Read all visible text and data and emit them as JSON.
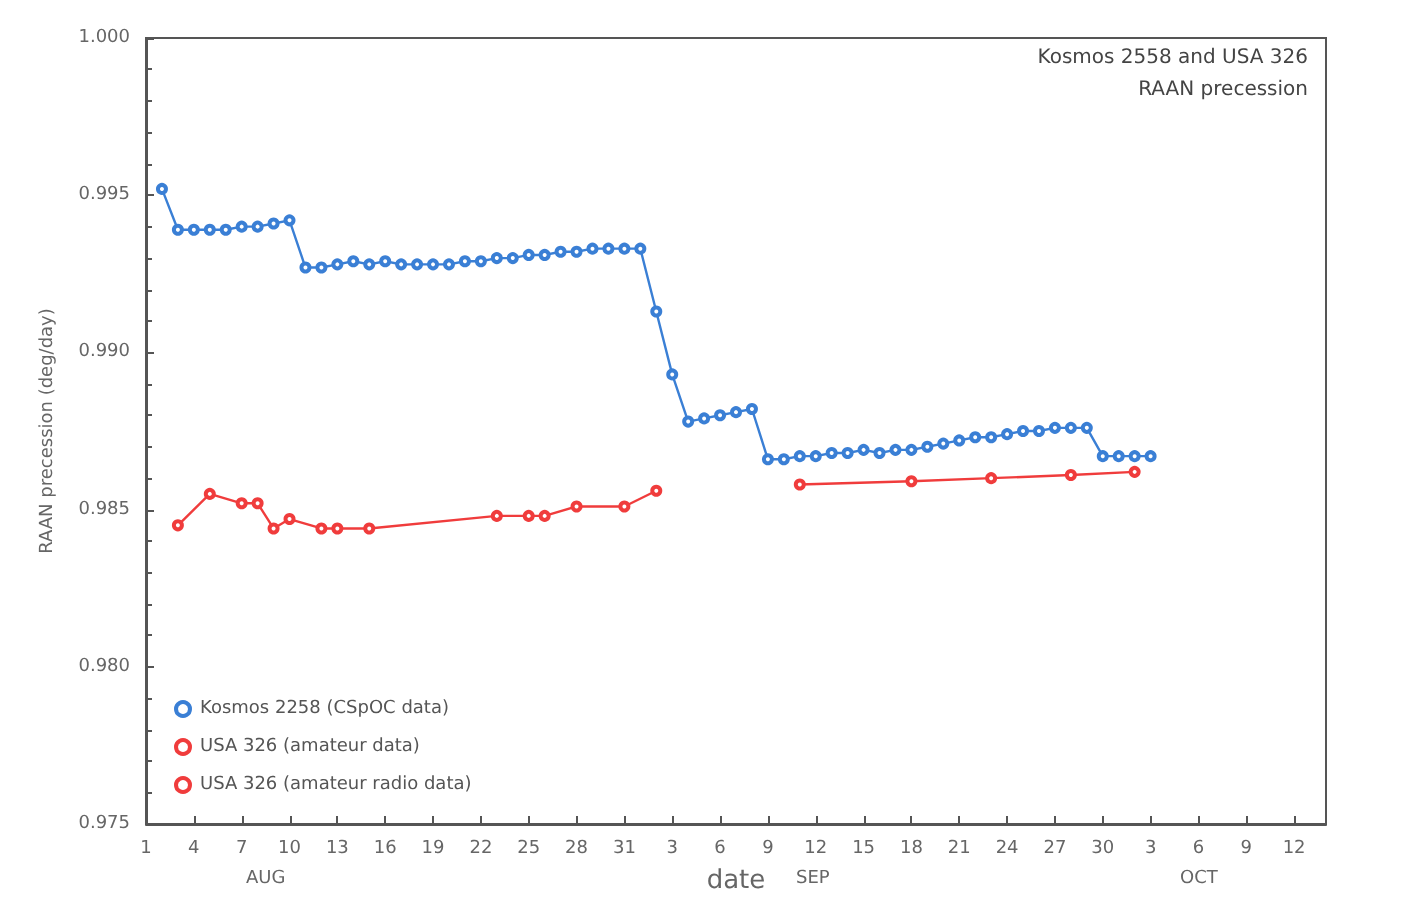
{
  "chart_data": {
    "type": "line",
    "title": "Kosmos 2558 and USA 326",
    "subtitle": "RAAN precession",
    "xlabel": "date",
    "ylabel": "RAAN precession (deg/day)",
    "annotations": [
      "AUG",
      "SEP",
      "OCT"
    ],
    "xlim": [
      "--08-01",
      "--10-14"
    ],
    "xticks": [
      {
        "value": "--08-01",
        "label": "1"
      },
      {
        "value": "--08-04",
        "label": "4"
      },
      {
        "value": "--08-07",
        "label": "7"
      },
      {
        "value": "--08-10",
        "label": "10"
      },
      {
        "value": "--08-13",
        "label": "13"
      },
      {
        "value": "--08-16",
        "label": "16"
      },
      {
        "value": "--08-19",
        "label": "19"
      },
      {
        "value": "--08-22",
        "label": "22"
      },
      {
        "value": "--08-25",
        "label": "25"
      },
      {
        "value": "--08-28",
        "label": "28"
      },
      {
        "value": "--08-31",
        "label": "31"
      },
      {
        "value": "--09-03",
        "label": "3"
      },
      {
        "value": "--09-06",
        "label": "6"
      },
      {
        "value": "--09-09",
        "label": "9"
      },
      {
        "value": "--09-12",
        "label": "12"
      },
      {
        "value": "--09-15",
        "label": "15"
      },
      {
        "value": "--09-18",
        "label": "18"
      },
      {
        "value": "--09-21",
        "label": "21"
      },
      {
        "value": "--09-24",
        "label": "24"
      },
      {
        "value": "--09-27",
        "label": "27"
      },
      {
        "value": "--09-30",
        "label": "30"
      },
      {
        "value": "--10-03",
        "label": "3"
      },
      {
        "value": "--10-06",
        "label": "6"
      },
      {
        "value": "--10-09",
        "label": "9"
      },
      {
        "value": "--10-12",
        "label": "12"
      }
    ],
    "ylim": [
      0.975,
      1.0
    ],
    "yticks": [
      {
        "value": 0.975,
        "label": "0.975"
      },
      {
        "value": 0.98,
        "label": "0.980"
      },
      {
        "value": 0.985,
        "label": "0.985"
      },
      {
        "value": 0.99,
        "label": "0.990"
      },
      {
        "value": 0.995,
        "label": "0.995"
      },
      {
        "value": 1.0,
        "label": "1.000"
      }
    ],
    "grid": false,
    "legend": "bottom left",
    "marker": "circle",
    "line_style": "solid",
    "series": [
      {
        "name": "Kosmos 2258 (CSpOC data)",
        "color": "#3a7fd5",
        "x": [
          "--08-02",
          "--08-03",
          "--08-04",
          "--08-05",
          "--08-06",
          "--08-07",
          "--08-08",
          "--08-09",
          "--08-10",
          "--08-11",
          "--08-12",
          "--08-13",
          "--08-14",
          "--08-15",
          "--08-16",
          "--08-17",
          "--08-18",
          "--08-19",
          "--08-20",
          "--08-21",
          "--08-22",
          "--08-23",
          "--08-24",
          "--08-25",
          "--08-26",
          "--08-27",
          "--08-28",
          "--08-29",
          "--08-30",
          "--08-31",
          "--09-01",
          "--09-02",
          "--09-03",
          "--09-04",
          "--09-05",
          "--09-06",
          "--09-07",
          "--09-08",
          "--09-09",
          "--09-10",
          "--09-11",
          "--09-12",
          "--09-13",
          "--09-14",
          "--09-15",
          "--09-16",
          "--09-17",
          "--09-18",
          "--09-19",
          "--09-20",
          "--09-21",
          "--09-22",
          "--09-23",
          "--09-24",
          "--09-25",
          "--09-26",
          "--09-27",
          "--09-28",
          "--09-29",
          "--09-30",
          "--10-01",
          "--10-02",
          "--10-03"
        ],
        "values": [
          0.9952,
          0.9939,
          0.9939,
          0.9939,
          0.9939,
          0.994,
          0.994,
          0.9941,
          0.9942,
          0.9927,
          0.9927,
          0.9928,
          0.9929,
          0.9928,
          0.9929,
          0.9928,
          0.9928,
          0.9928,
          0.9928,
          0.9929,
          0.9929,
          0.993,
          0.993,
          0.9931,
          0.9931,
          0.9932,
          0.9932,
          0.9933,
          0.9933,
          0.9933,
          0.9933,
          0.9913,
          0.9893,
          0.9878,
          0.9879,
          0.988,
          0.9881,
          0.9882,
          0.9866,
          0.9866,
          0.9867,
          0.9867,
          0.9868,
          0.9868,
          0.9869,
          0.9868,
          0.9869,
          0.9869,
          0.987,
          0.9871,
          0.9872,
          0.9873,
          0.9873,
          0.9874,
          0.9875,
          0.9875,
          0.9876,
          0.9876,
          0.9876,
          0.9867,
          0.9867,
          0.9867,
          0.9867
        ]
      },
      {
        "name": "USA 326 (amateur data)",
        "color": "#f03c3c",
        "x": [
          "--08-03",
          "--08-05",
          "--08-07",
          "--08-08",
          "--08-09",
          "--08-10",
          "--08-12",
          "--08-13",
          "--08-15",
          "--08-23",
          "--08-25",
          "--08-26",
          "--08-28",
          "--08-31",
          "--09-02"
        ],
        "values": [
          0.9845,
          0.9855,
          0.9852,
          0.9852,
          0.9844,
          0.9847,
          0.9844,
          0.9844,
          0.9844,
          0.9848,
          0.9848,
          0.9848,
          0.9851,
          0.9851,
          0.9856
        ]
      },
      {
        "name": "USA 326 (amateur radio data)",
        "color": "#f03c3c",
        "x": [
          "--09-11",
          "--09-18",
          "--09-23",
          "--09-28",
          "--10-02"
        ],
        "values": [
          0.9858,
          0.9859,
          0.986,
          0.9861,
          0.9862
        ]
      }
    ]
  }
}
